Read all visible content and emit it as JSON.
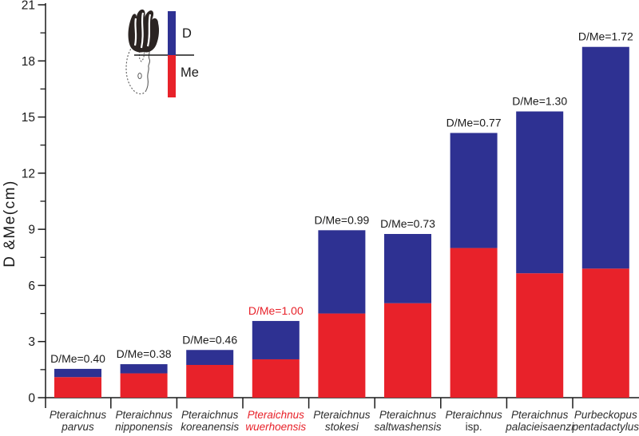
{
  "chart_data": {
    "type": "bar",
    "stacked": true,
    "title": "",
    "ylabel": "D &Me(cm)",
    "xlabel": "",
    "ylim": [
      0,
      21
    ],
    "yticks": [
      0,
      3,
      6,
      9,
      12,
      15,
      18,
      21
    ],
    "minor_tick_interval": 1.5,
    "grid": false,
    "legend": {
      "position": "top-left",
      "d_label": "D",
      "me_label": "Me"
    },
    "categories": [
      {
        "genus": "Pteraichnus",
        "species": "parvus",
        "ratio_label": "D/Me=0.40",
        "highlight": false,
        "species_italic": true
      },
      {
        "genus": "Pteraichnus",
        "species": "nipponensis",
        "ratio_label": "D/Me=0.38",
        "highlight": false,
        "species_italic": true
      },
      {
        "genus": "Pteraichnus",
        "species": "koreanensis",
        "ratio_label": "D/Me=0.46",
        "highlight": false,
        "species_italic": true
      },
      {
        "genus": "Pteraichnus",
        "species": "wuerhoensis",
        "ratio_label": "D/Me=1.00",
        "highlight": true,
        "species_italic": true
      },
      {
        "genus": "Pteraichnus",
        "species": "stokesi",
        "ratio_label": "D/Me=0.99",
        "highlight": false,
        "species_italic": true
      },
      {
        "genus": "Pteraichnus",
        "species": "saltwashensis",
        "ratio_label": "D/Me=0.73",
        "highlight": false,
        "species_italic": true
      },
      {
        "genus": "Pteraichnus",
        "species": "isp.",
        "ratio_label": "D/Me=0.77",
        "highlight": false,
        "species_italic": false
      },
      {
        "genus": "Pteraichnus",
        "species": "palacieisaenzi",
        "ratio_label": "D/Me=1.30",
        "highlight": false,
        "species_italic": true
      },
      {
        "genus": "Purbeckopus",
        "species": "pentadactylus",
        "ratio_label": "D/Me=1.72",
        "highlight": false,
        "species_italic": true
      }
    ],
    "series": [
      {
        "name": "Me",
        "color": "#e8222a",
        "values": [
          1.1,
          1.3,
          1.75,
          2.05,
          4.5,
          5.05,
          8.0,
          6.65,
          6.9
        ]
      },
      {
        "name": "D",
        "color": "#2e3192",
        "values": [
          0.44,
          0.49,
          0.8,
          2.05,
          4.45,
          3.7,
          6.15,
          8.65,
          11.85
        ]
      }
    ]
  },
  "colors": {
    "axis": "#1a1a1a",
    "text": "#2d2d2d",
    "highlight": "#e8222a",
    "background": "#ffffff"
  }
}
